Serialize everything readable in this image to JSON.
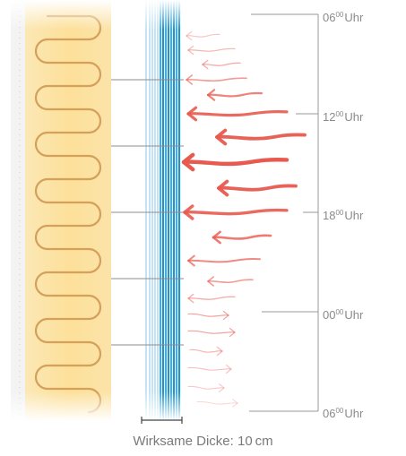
{
  "diagram": {
    "time_labels": [
      {
        "hour": "06",
        "minutes": "00",
        "unit": "Uhr"
      },
      {
        "hour": "12",
        "minutes": "00",
        "unit": "Uhr"
      },
      {
        "hour": "18",
        "minutes": "00",
        "unit": "Uhr"
      },
      {
        "hour": "00",
        "minutes": "00",
        "unit": "Uhr"
      },
      {
        "hour": "06",
        "minutes": "00",
        "unit": "Uhr"
      }
    ],
    "caption": "Wirksame Dicke: 10 cm",
    "colors": {
      "insulation": "#fde3a0",
      "insulation_curve": "#d9a35a",
      "wall": "#f2f2f2",
      "layer_lines": "#2b9bd0",
      "arrows": "#e85a4f",
      "leader_lines": "#8c8c8c"
    },
    "icons": [
      "heat-flow-arrow-icon",
      "scale-bar-icon"
    ]
  }
}
